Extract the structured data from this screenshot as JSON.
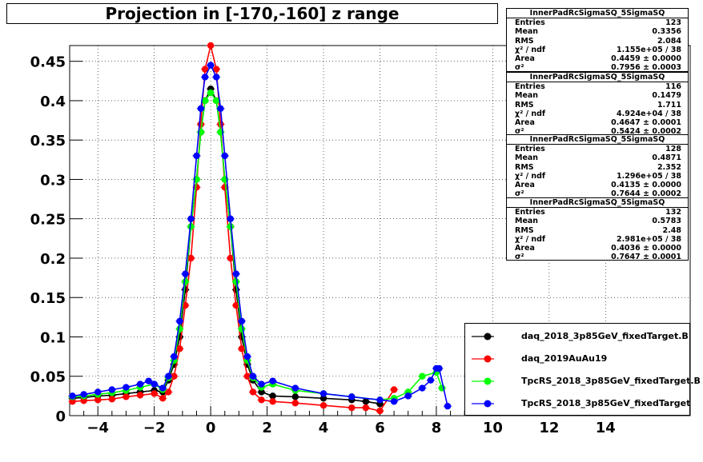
{
  "title": "Projection in [-170,-160] z range",
  "stats_boxes": [
    {
      "name": "InnerPadRcSigmaSQ_5SigmaSQ",
      "entries": "123",
      "mean": "0.3356",
      "rms": "2.084",
      "chi2ndf": "1.155e+05 / 38",
      "area": "0.4459 ± 0.0000",
      "sigma2": "0.7956 ± 0.0003"
    },
    {
      "name": "InnerPadRcSigmaSQ_5SigmaSQ",
      "entries": "116",
      "mean": "0.1479",
      "rms": "1.711",
      "chi2ndf": "4.924e+04 / 38",
      "area": "0.4647 ± 0.0001",
      "sigma2": "0.5424 ± 0.0002"
    },
    {
      "name": "InnerPadRcSigmaSQ_5SigmaSQ",
      "entries": "128",
      "mean": "0.4871",
      "rms": "2.352",
      "chi2ndf": "1.296e+05 / 38",
      "area": "0.4135 ± 0.0000",
      "sigma2": "0.7644 ± 0.0002"
    },
    {
      "name": "InnerPadRcSigmaSQ_5SigmaSQ",
      "entries": "132",
      "mean": "0.5783",
      "rms": "2.48",
      "chi2ndf": "2.981e+05 / 38",
      "area": "0.4036 ± 0.0000",
      "sigma2": "0.7647 ± 0.0001"
    }
  ],
  "stat_labels": {
    "entries": "Entries",
    "mean": "Mean",
    "rms": "RMS",
    "chi2ndf": "χ² / ndf",
    "area": "Area",
    "sigma2": "σ²"
  },
  "legend": [
    {
      "label": "daq_2018_3p85GeV_fixedTarget.B",
      "color": "#000000"
    },
    {
      "label": "daq_2019AuAu19",
      "color": "#ff0000"
    },
    {
      "label": "TpcRS_2018_3p85GeV_fixedTarget.B",
      "color": "#00ff00"
    },
    {
      "label": "TpcRS_2018_3p85GeV_fixedTarget",
      "color": "#0000ff"
    }
  ],
  "chart_data": {
    "type": "scatter",
    "title": "Projection in [-170,-160] z range",
    "xlim": [
      -5,
      17
    ],
    "ylim": [
      0,
      0.47
    ],
    "x_ticks": [
      -4,
      -2,
      0,
      2,
      4,
      6,
      8,
      10,
      12,
      14
    ],
    "y_ticks": [
      0,
      0.05,
      0.1,
      0.15,
      0.2,
      0.25,
      0.3,
      0.35,
      0.4,
      0.45
    ],
    "x_tick_labels": [
      "−4",
      "−2",
      "0",
      "2",
      "4",
      "6",
      "8",
      "10",
      "12",
      "14"
    ],
    "y_tick_labels": [
      "0",
      "0.05",
      "0.1",
      "0.15",
      "0.2",
      "0.25",
      "0.3",
      "0.35",
      "0.4",
      "0.45"
    ],
    "grid": true,
    "series": [
      {
        "name": "daq_2018_3p85GeV_fixedTarget.B",
        "color": "#000000",
        "points": [
          [
            -4.9,
            0.022
          ],
          [
            -4.5,
            0.023
          ],
          [
            -4,
            0.025
          ],
          [
            -3.5,
            0.026
          ],
          [
            -3,
            0.028
          ],
          [
            -2.5,
            0.03
          ],
          [
            -2,
            0.032
          ],
          [
            -1.7,
            0.03
          ],
          [
            -1.5,
            0.045
          ],
          [
            -1.3,
            0.065
          ],
          [
            -1.1,
            0.1
          ],
          [
            -0.9,
            0.16
          ],
          [
            -0.7,
            0.24
          ],
          [
            -0.5,
            0.3
          ],
          [
            -0.35,
            0.36
          ],
          [
            -0.2,
            0.4
          ],
          [
            0,
            0.415
          ],
          [
            0.2,
            0.4
          ],
          [
            0.35,
            0.36
          ],
          [
            0.5,
            0.3
          ],
          [
            0.7,
            0.24
          ],
          [
            0.9,
            0.16
          ],
          [
            1.1,
            0.1
          ],
          [
            1.3,
            0.065
          ],
          [
            1.5,
            0.045
          ],
          [
            1.8,
            0.03
          ],
          [
            2.2,
            0.025
          ],
          [
            3,
            0.024
          ],
          [
            4,
            0.022
          ],
          [
            5,
            0.02
          ],
          [
            5.5,
            0.018
          ],
          [
            6,
            0.015
          ]
        ]
      },
      {
        "name": "daq_2019AuAu19",
        "color": "#ff0000",
        "points": [
          [
            -4.9,
            0.018
          ],
          [
            -4.5,
            0.019
          ],
          [
            -4,
            0.02
          ],
          [
            -3.5,
            0.021
          ],
          [
            -3,
            0.024
          ],
          [
            -2.5,
            0.026
          ],
          [
            -2,
            0.028
          ],
          [
            -1.7,
            0.022
          ],
          [
            -1.5,
            0.03
          ],
          [
            -1.3,
            0.05
          ],
          [
            -1.1,
            0.085
          ],
          [
            -0.9,
            0.14
          ],
          [
            -0.7,
            0.2
          ],
          [
            -0.5,
            0.29
          ],
          [
            -0.35,
            0.37
          ],
          [
            -0.2,
            0.44
          ],
          [
            0,
            0.47
          ],
          [
            0.2,
            0.44
          ],
          [
            0.35,
            0.37
          ],
          [
            0.5,
            0.29
          ],
          [
            0.7,
            0.2
          ],
          [
            0.9,
            0.14
          ],
          [
            1.1,
            0.085
          ],
          [
            1.3,
            0.05
          ],
          [
            1.5,
            0.03
          ],
          [
            1.8,
            0.02
          ],
          [
            2.2,
            0.018
          ],
          [
            3,
            0.016
          ],
          [
            4,
            0.013
          ],
          [
            5,
            0.01
          ],
          [
            5.5,
            0.01
          ],
          [
            6,
            0.006
          ],
          [
            6.5,
            0.033
          ]
        ]
      },
      {
        "name": "TpcRS_2018_3p85GeV_fixedTarget.B",
        "color": "#00ff00",
        "points": [
          [
            -4.9,
            0.024
          ],
          [
            -4.5,
            0.025
          ],
          [
            -4,
            0.027
          ],
          [
            -3.5,
            0.029
          ],
          [
            -3,
            0.032
          ],
          [
            -2.5,
            0.036
          ],
          [
            -2,
            0.04
          ],
          [
            -1.7,
            0.033
          ],
          [
            -1.5,
            0.048
          ],
          [
            -1.3,
            0.07
          ],
          [
            -1.1,
            0.11
          ],
          [
            -0.9,
            0.17
          ],
          [
            -0.7,
            0.24
          ],
          [
            -0.5,
            0.3
          ],
          [
            -0.35,
            0.36
          ],
          [
            -0.2,
            0.4
          ],
          [
            0,
            0.41
          ],
          [
            0.2,
            0.4
          ],
          [
            0.35,
            0.36
          ],
          [
            0.5,
            0.3
          ],
          [
            0.7,
            0.24
          ],
          [
            0.9,
            0.17
          ],
          [
            1.1,
            0.11
          ],
          [
            1.3,
            0.07
          ],
          [
            1.5,
            0.048
          ],
          [
            1.8,
            0.036
          ],
          [
            2.2,
            0.04
          ],
          [
            3,
            0.032
          ],
          [
            4,
            0.028
          ],
          [
            5,
            0.024
          ],
          [
            6,
            0.02
          ],
          [
            6.5,
            0.022
          ],
          [
            7,
            0.03
          ],
          [
            7.5,
            0.05
          ],
          [
            8,
            0.055
          ],
          [
            8.2,
            0.035
          ]
        ]
      },
      {
        "name": "TpcRS_2018_3p85GeV_fixedTarget",
        "color": "#0000ff",
        "points": [
          [
            -4.9,
            0.025
          ],
          [
            -4.5,
            0.027
          ],
          [
            -4,
            0.03
          ],
          [
            -3.5,
            0.033
          ],
          [
            -3,
            0.036
          ],
          [
            -2.5,
            0.04
          ],
          [
            -2.2,
            0.044
          ],
          [
            -2,
            0.04
          ],
          [
            -1.7,
            0.035
          ],
          [
            -1.5,
            0.05
          ],
          [
            -1.3,
            0.075
          ],
          [
            -1.1,
            0.12
          ],
          [
            -0.9,
            0.18
          ],
          [
            -0.7,
            0.25
          ],
          [
            -0.5,
            0.33
          ],
          [
            -0.35,
            0.39
          ],
          [
            -0.2,
            0.43
          ],
          [
            0,
            0.445
          ],
          [
            0.2,
            0.43
          ],
          [
            0.35,
            0.39
          ],
          [
            0.5,
            0.33
          ],
          [
            0.7,
            0.25
          ],
          [
            0.9,
            0.18
          ],
          [
            1.1,
            0.12
          ],
          [
            1.3,
            0.075
          ],
          [
            1.5,
            0.05
          ],
          [
            1.8,
            0.04
          ],
          [
            2.2,
            0.044
          ],
          [
            3,
            0.035
          ],
          [
            4,
            0.028
          ],
          [
            5,
            0.024
          ],
          [
            6,
            0.02
          ],
          [
            6.5,
            0.018
          ],
          [
            7,
            0.025
          ],
          [
            7.5,
            0.035
          ],
          [
            7.8,
            0.045
          ],
          [
            8,
            0.06
          ],
          [
            8.1,
            0.06
          ],
          [
            8.4,
            0.012
          ]
        ]
      }
    ]
  }
}
